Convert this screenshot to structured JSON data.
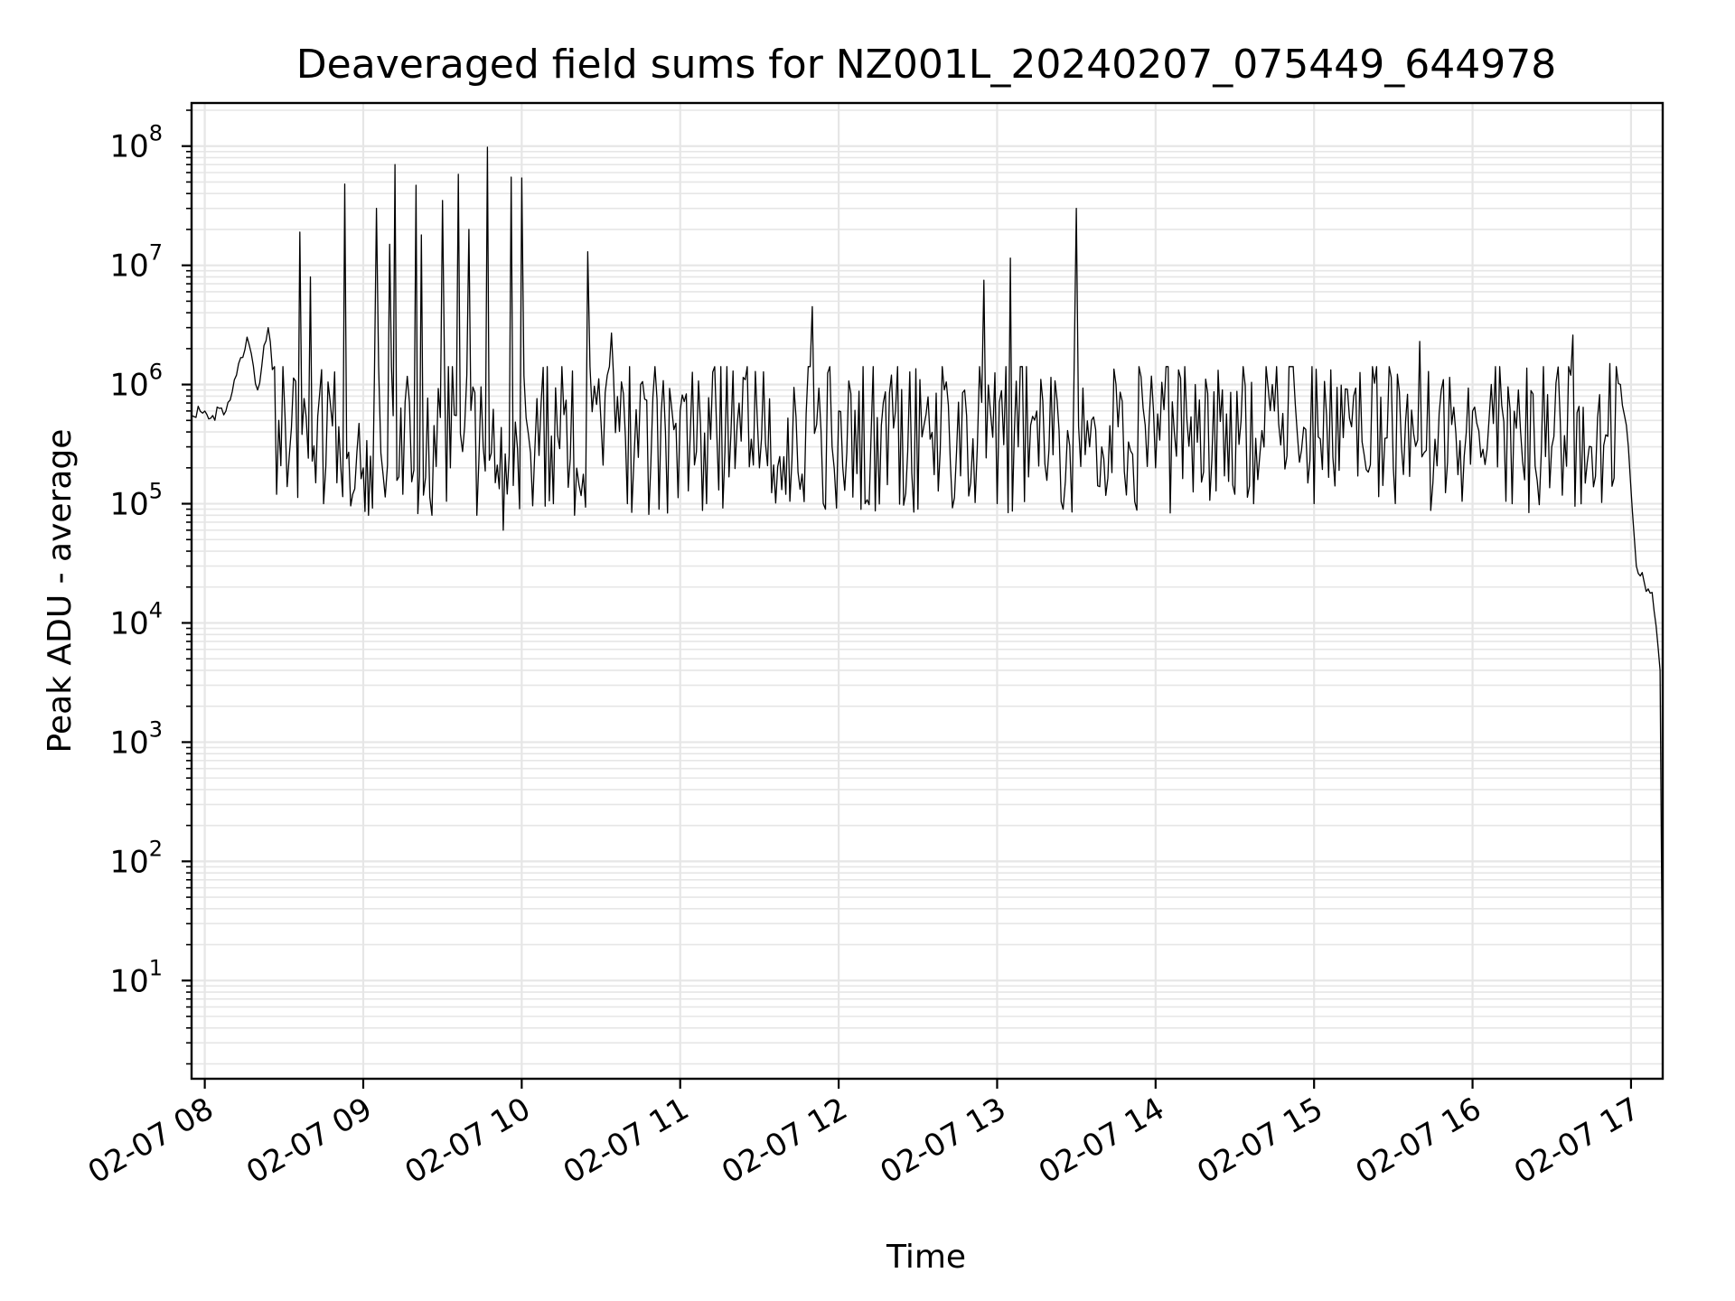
{
  "chart_data": {
    "type": "line",
    "title": "Deaveraged field sums for NZ001L_20240207_075449_644978",
    "xlabel": "Time",
    "ylabel": "Peak ADU - average",
    "y_scale": "log",
    "ylim": [
      1.5,
      230000000
    ],
    "xlim": [
      "2024-02-07 07:55",
      "2024-02-07 17:12"
    ],
    "grid": true,
    "line_color": "#000000",
    "grid_color": "#e6e6e6",
    "x_ticks": [
      {
        "label": "02-07 08",
        "value": "2024-02-07 08:00"
      },
      {
        "label": "02-07 09",
        "value": "2024-02-07 09:00"
      },
      {
        "label": "02-07 10",
        "value": "2024-02-07 10:00"
      },
      {
        "label": "02-07 11",
        "value": "2024-02-07 11:00"
      },
      {
        "label": "02-07 12",
        "value": "2024-02-07 12:00"
      },
      {
        "label": "02-07 13",
        "value": "2024-02-07 13:00"
      },
      {
        "label": "02-07 14",
        "value": "2024-02-07 14:00"
      },
      {
        "label": "02-07 15",
        "value": "2024-02-07 15:00"
      },
      {
        "label": "02-07 16",
        "value": "2024-02-07 16:00"
      },
      {
        "label": "02-07 17",
        "value": "2024-02-07 17:00"
      }
    ],
    "y_ticks": [
      {
        "base": "10",
        "exp": "1",
        "value": 10
      },
      {
        "base": "10",
        "exp": "2",
        "value": 100
      },
      {
        "base": "10",
        "exp": "3",
        "value": 1000
      },
      {
        "base": "10",
        "exp": "4",
        "value": 10000
      },
      {
        "base": "10",
        "exp": "5",
        "value": 100000
      },
      {
        "base": "10",
        "exp": "6",
        "value": 1000000
      },
      {
        "base": "10",
        "exp": "7",
        "value": 10000000
      },
      {
        "base": "10",
        "exp": "8",
        "value": 100000000
      }
    ],
    "series": [
      {
        "x": [
          "2024-02-07 07:55",
          "2024-02-07 08:00",
          "2024-02-07 08:03",
          "2024-02-07 08:08",
          "2024-02-07 08:12",
          "2024-02-07 08:16",
          "2024-02-07 08:20",
          "2024-02-07 08:24",
          "2024-02-07 08:28",
          "2024-02-07 08:32",
          "2024-02-07 08:36",
          "2024-02-07 08:40",
          "2024-02-07 08:42",
          "2024-02-07 08:45",
          "2024-02-07 08:50",
          "2024-02-07 08:53",
          "2024-02-07 08:56",
          "2024-02-07 09:00",
          "2024-02-07 09:02",
          "2024-02-07 09:05",
          "2024-02-07 09:10",
          "2024-02-07 09:12",
          "2024-02-07 09:15",
          "2024-02-07 09:20",
          "2024-02-07 09:22",
          "2024-02-07 09:26",
          "2024-02-07 09:30",
          "2024-02-07 09:33",
          "2024-02-07 09:36",
          "2024-02-07 09:40",
          "2024-02-07 09:43",
          "2024-02-07 09:47",
          "2024-02-07 09:50",
          "2024-02-07 09:53",
          "2024-02-07 09:56",
          "2024-02-07 10:00",
          "2024-02-07 10:05",
          "2024-02-07 10:12",
          "2024-02-07 10:20",
          "2024-02-07 10:25",
          "2024-02-07 10:30",
          "2024-02-07 10:34",
          "2024-02-07 10:40",
          "2024-02-07 10:45",
          "2024-02-07 10:52",
          "2024-02-07 11:00",
          "2024-02-07 11:10",
          "2024-02-07 11:20",
          "2024-02-07 11:30",
          "2024-02-07 11:40",
          "2024-02-07 11:50",
          "2024-02-07 11:55",
          "2024-02-07 12:00",
          "2024-02-07 12:10",
          "2024-02-07 12:20",
          "2024-02-07 12:30",
          "2024-02-07 12:40",
          "2024-02-07 12:50",
          "2024-02-07 12:55",
          "2024-02-07 13:00",
          "2024-02-07 13:05",
          "2024-02-07 13:08",
          "2024-02-07 13:15",
          "2024-02-07 13:25",
          "2024-02-07 13:30",
          "2024-02-07 13:35",
          "2024-02-07 13:45",
          "2024-02-07 14:00",
          "2024-02-07 14:15",
          "2024-02-07 14:30",
          "2024-02-07 14:45",
          "2024-02-07 15:00",
          "2024-02-07 15:15",
          "2024-02-07 15:30",
          "2024-02-07 15:40",
          "2024-02-07 15:45",
          "2024-02-07 16:00",
          "2024-02-07 16:15",
          "2024-02-07 16:30",
          "2024-02-07 16:38",
          "2024-02-07 16:45",
          "2024-02-07 16:52",
          "2024-02-07 16:56",
          "2024-02-07 16:59",
          "2024-02-07 17:02",
          "2024-02-07 17:05",
          "2024-02-07 17:08",
          "2024-02-07 17:11",
          "2024-02-07 17:12"
        ],
        "values": [
          550000,
          600000,
          550000,
          600000,
          1200000,
          2500000,
          900000,
          3000000,
          500000,
          250000,
          19000000,
          8000000,
          150000,
          100000,
          150000,
          48000000,
          120000,
          200000,
          80000,
          30000000,
          15000000,
          70000000,
          120000,
          47000000,
          18000000,
          80000,
          35000000,
          200000,
          58000000,
          20000000,
          80000,
          98000000,
          150000,
          60000,
          55000000,
          54000000,
          300000,
          100000,
          80000,
          13000000,
          500000,
          2700000,
          100000,
          1000000,
          90000,
          600000,
          100000,
          1300000,
          200000,
          120000,
          4500000,
          90000,
          600000,
          100000,
          1200000,
          90000,
          900000,
          150000,
          7500000,
          100000,
          11500000,
          300000,
          600000,
          90000,
          30000000,
          300000,
          1000000,
          200000,
          1000000,
          120000,
          600000,
          100000,
          800000,
          200000,
          2300000,
          150000,
          600000,
          100000,
          300000,
          2600000,
          300000,
          1500000,
          1000000,
          300000,
          30000,
          22000,
          18000,
          4000,
          4
        ]
      }
    ]
  }
}
